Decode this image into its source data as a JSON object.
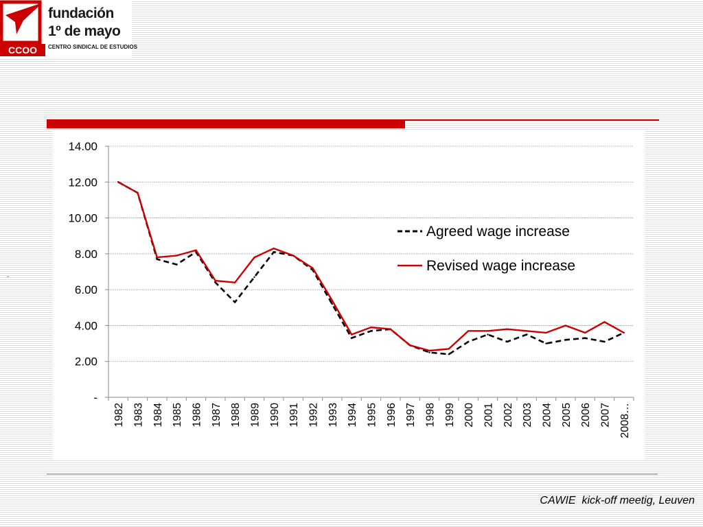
{
  "logo": {
    "word1": "fundación",
    "word2": "1º de mayo",
    "sub": "CENTRO SINDICAL DE ESTUDIOS",
    "badge": "CCOO"
  },
  "footer": {
    "text": "CAWIE  kick-off meetig, Leuven"
  },
  "side_mark": "-",
  "colors": {
    "accent": "#cc0000",
    "revised": "#cc0000",
    "agreed": "#000000",
    "grid": "#a6a6a6"
  },
  "chart_data": {
    "type": "line",
    "categories": [
      "1982",
      "1983",
      "1984",
      "1985",
      "1986",
      "1987",
      "1988",
      "1989",
      "1990",
      "1991",
      "1992",
      "1993",
      "1994",
      "1995",
      "1996",
      "1997",
      "1998",
      "1999",
      "2000",
      "2001",
      "2002",
      "2003",
      "2004",
      "2005",
      "2006",
      "2007",
      "2008…"
    ],
    "ylim": [
      0,
      14
    ],
    "yticks": [
      0,
      2,
      4,
      6,
      8,
      10,
      12,
      14
    ],
    "ytick_labels": [
      "-",
      "2.00",
      "4.00",
      "6.00",
      "8.00",
      "10.00",
      "12.00",
      "14.00"
    ],
    "grid": true,
    "legend_position": "right",
    "series": [
      {
        "name": "Agreed wage increase",
        "style": "dashed",
        "color": "#000000",
        "values": [
          12.0,
          11.4,
          7.7,
          7.4,
          8.1,
          6.4,
          5.3,
          6.7,
          8.1,
          7.9,
          7.1,
          5.2,
          3.3,
          3.7,
          3.8,
          2.9,
          2.5,
          2.4,
          3.1,
          3.5,
          3.1,
          3.5,
          3.0,
          3.2,
          3.3,
          3.1,
          3.6
        ]
      },
      {
        "name": "Revised wage increase",
        "style": "solid",
        "color": "#cc0000",
        "values": [
          12.0,
          11.4,
          7.8,
          7.9,
          8.2,
          6.5,
          6.4,
          7.8,
          8.3,
          7.9,
          7.2,
          5.4,
          3.5,
          3.9,
          3.8,
          2.9,
          2.6,
          2.7,
          3.7,
          3.7,
          3.8,
          3.7,
          3.6,
          4.0,
          3.6,
          4.2,
          3.6
        ]
      }
    ]
  }
}
